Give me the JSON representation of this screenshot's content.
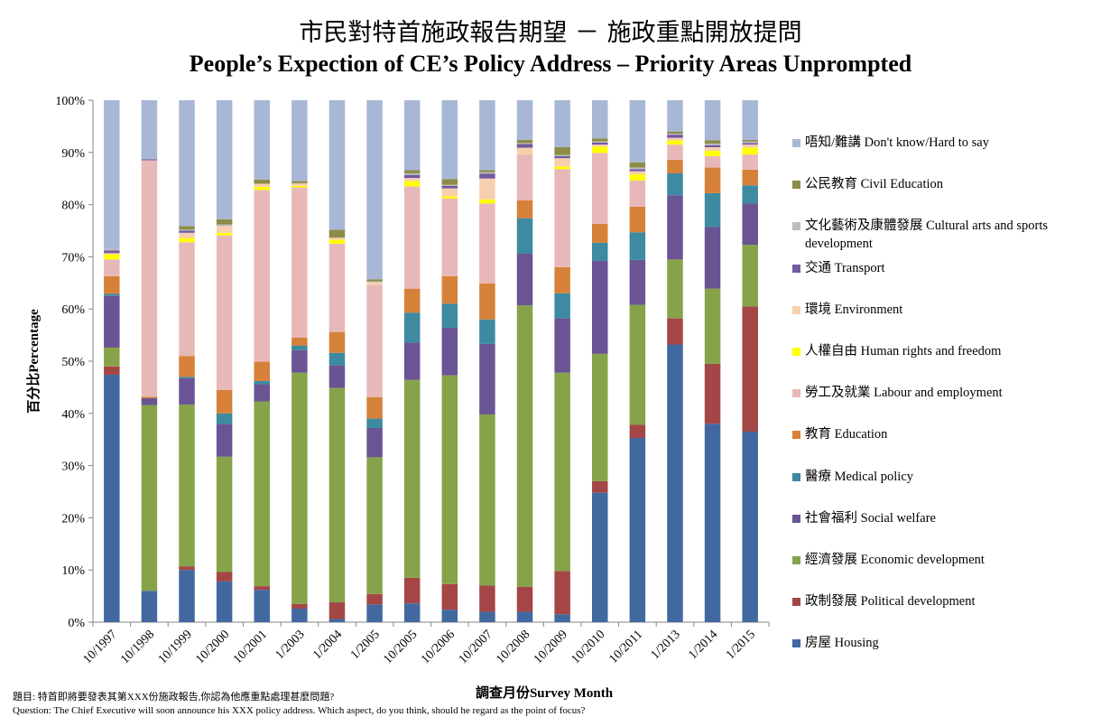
{
  "chart_data": {
    "type": "bar",
    "stacked": true,
    "title": "市民對特首施政報告期望 － 施政重點開放提問",
    "subtitle": "People’s Expection of CE’s Policy Address – Priority Areas Unprompted",
    "xlabel": "調查月份Survey Month",
    "ylabel": "百分比Percentage",
    "ylim": [
      0,
      100
    ],
    "yticks": [
      "0%",
      "10%",
      "20%",
      "30%",
      "40%",
      "50%",
      "60%",
      "70%",
      "80%",
      "90%",
      "100%"
    ],
    "legend_position": "right",
    "categories": [
      "10/1997",
      "10/1998",
      "10/1999",
      "10/2000",
      "10/2001",
      "1/2003",
      "1/2004",
      "1/2005",
      "10/2005",
      "10/2006",
      "10/2007",
      "10/2008",
      "10/2009",
      "10/2010",
      "10/2011",
      "1/2013",
      "1/2014",
      "1/2015"
    ],
    "series": [
      {
        "name": "房屋 Housing",
        "color": "#4169a0",
        "values": [
          47.4,
          6.0,
          10.0,
          7.8,
          6.2,
          2.6,
          0.6,
          3.4,
          3.6,
          2.4,
          2.0,
          2.0,
          1.5,
          24.8,
          35.3,
          53.2,
          38.0,
          36.5
        ]
      },
      {
        "name": "政制發展 Political development",
        "color": "#a54646",
        "values": [
          1.6,
          0,
          0.7,
          1.8,
          0.7,
          0.9,
          3.2,
          2.0,
          4.9,
          4.9,
          5.0,
          4.8,
          8.3,
          2.2,
          2.5,
          5.0,
          11.5,
          24.0
        ]
      },
      {
        "name": "經濟發展 Economic development",
        "color": "#86a34a",
        "values": [
          3.6,
          35.6,
          31.0,
          22.1,
          35.4,
          44.3,
          41.1,
          26.2,
          37.9,
          40.0,
          32.8,
          53.9,
          38.0,
          24.4,
          23.0,
          11.3,
          14.4,
          11.8
        ]
      },
      {
        "name": "社會福利 Social welfare",
        "color": "#6a5494",
        "values": [
          9.9,
          1.3,
          5.0,
          6.3,
          3.3,
          4.3,
          4.3,
          5.6,
          7.2,
          9.1,
          13.5,
          9.9,
          10.4,
          17.8,
          8.6,
          12.3,
          11.8,
          7.9
        ]
      },
      {
        "name": "醫療 Medical policy",
        "color": "#3d8aa1",
        "values": [
          0.4,
          0,
          0.3,
          2.0,
          0.6,
          0.9,
          2.4,
          1.8,
          5.7,
          4.6,
          4.7,
          6.8,
          4.8,
          3.5,
          5.3,
          4.2,
          6.5,
          3.5
        ]
      },
      {
        "name": "教育 Education",
        "color": "#d6813a",
        "values": [
          3.4,
          0.3,
          4.0,
          4.5,
          3.7,
          1.5,
          4.0,
          4.1,
          4.6,
          5.3,
          6.9,
          3.4,
          5.0,
          3.6,
          4.9,
          2.6,
          4.9,
          3.0
        ]
      },
      {
        "name": "勞工及就業 Labour and employment",
        "color": "#e8b8b8",
        "values": [
          3.2,
          45.3,
          21.8,
          29.6,
          32.9,
          28.8,
          16.9,
          21.5,
          19.6,
          14.9,
          15.3,
          8.8,
          18.8,
          13.6,
          5.0,
          2.9,
          2.2,
          2.9
        ]
      },
      {
        "name": "人權自由 Human rights and freedom",
        "color": "#ffff00",
        "values": [
          1.0,
          0,
          0.8,
          0.5,
          0.6,
          0.3,
          0.8,
          0,
          1.0,
          0.4,
          0.8,
          0,
          0.5,
          1.2,
          1.2,
          0.8,
          1.0,
          1.3
        ]
      },
      {
        "name": "環境 Environment",
        "color": "#f8cfae",
        "values": [
          0.2,
          0,
          1.0,
          1.3,
          0.6,
          0.4,
          0.3,
          0.5,
          0.6,
          1.5,
          4.0,
          1.3,
          1.6,
          0.4,
          0.6,
          0.5,
          0.7,
          0.6
        ]
      },
      {
        "name": "交通 Transport",
        "color": "#7259a1",
        "values": [
          0.5,
          0.2,
          0.4,
          0,
          0,
          0,
          0,
          0,
          0.6,
          0.5,
          0.9,
          0.7,
          0.4,
          0.4,
          0.4,
          0.6,
          0.4,
          0.3
        ]
      },
      {
        "name": "文化藝術及康體發展 Cultural arts and sports development",
        "color": "#bdbdbd",
        "values": [
          0.3,
          0,
          0.2,
          0.3,
          0,
          0.1,
          0.1,
          0.2,
          0.3,
          0.2,
          0.3,
          0.2,
          0.2,
          0.2,
          0.3,
          0.2,
          0.3,
          0.3
        ]
      },
      {
        "name": "公民教育 Civil Education",
        "color": "#8c8c48",
        "values": [
          0,
          0,
          0.7,
          1.0,
          0.8,
          0.4,
          1.5,
          0.4,
          0.6,
          1.1,
          0.4,
          0.6,
          1.5,
          0.6,
          1.0,
          0.4,
          0.6,
          0.3
        ]
      },
      {
        "name": "唔知/難講 Don't know/Hard to say",
        "color": "#a9b7d6",
        "values": [
          28.5,
          11.3,
          24.1,
          22.8,
          15.2,
          15.5,
          24.8,
          34.3,
          13.4,
          15.1,
          13.4,
          7.6,
          9.0,
          7.3,
          11.9,
          6.0,
          7.7,
          7.6
        ]
      }
    ]
  },
  "footnote": {
    "line1": "題目: 特首即將要發表其第XXX份施政報告,你認為他應重點處理甚麼問題?",
    "line2": "Question: The Chief Executive  will  soon announce his XXX policy  address. Which aspect, do you think,  should he regard as the point of focus?"
  }
}
